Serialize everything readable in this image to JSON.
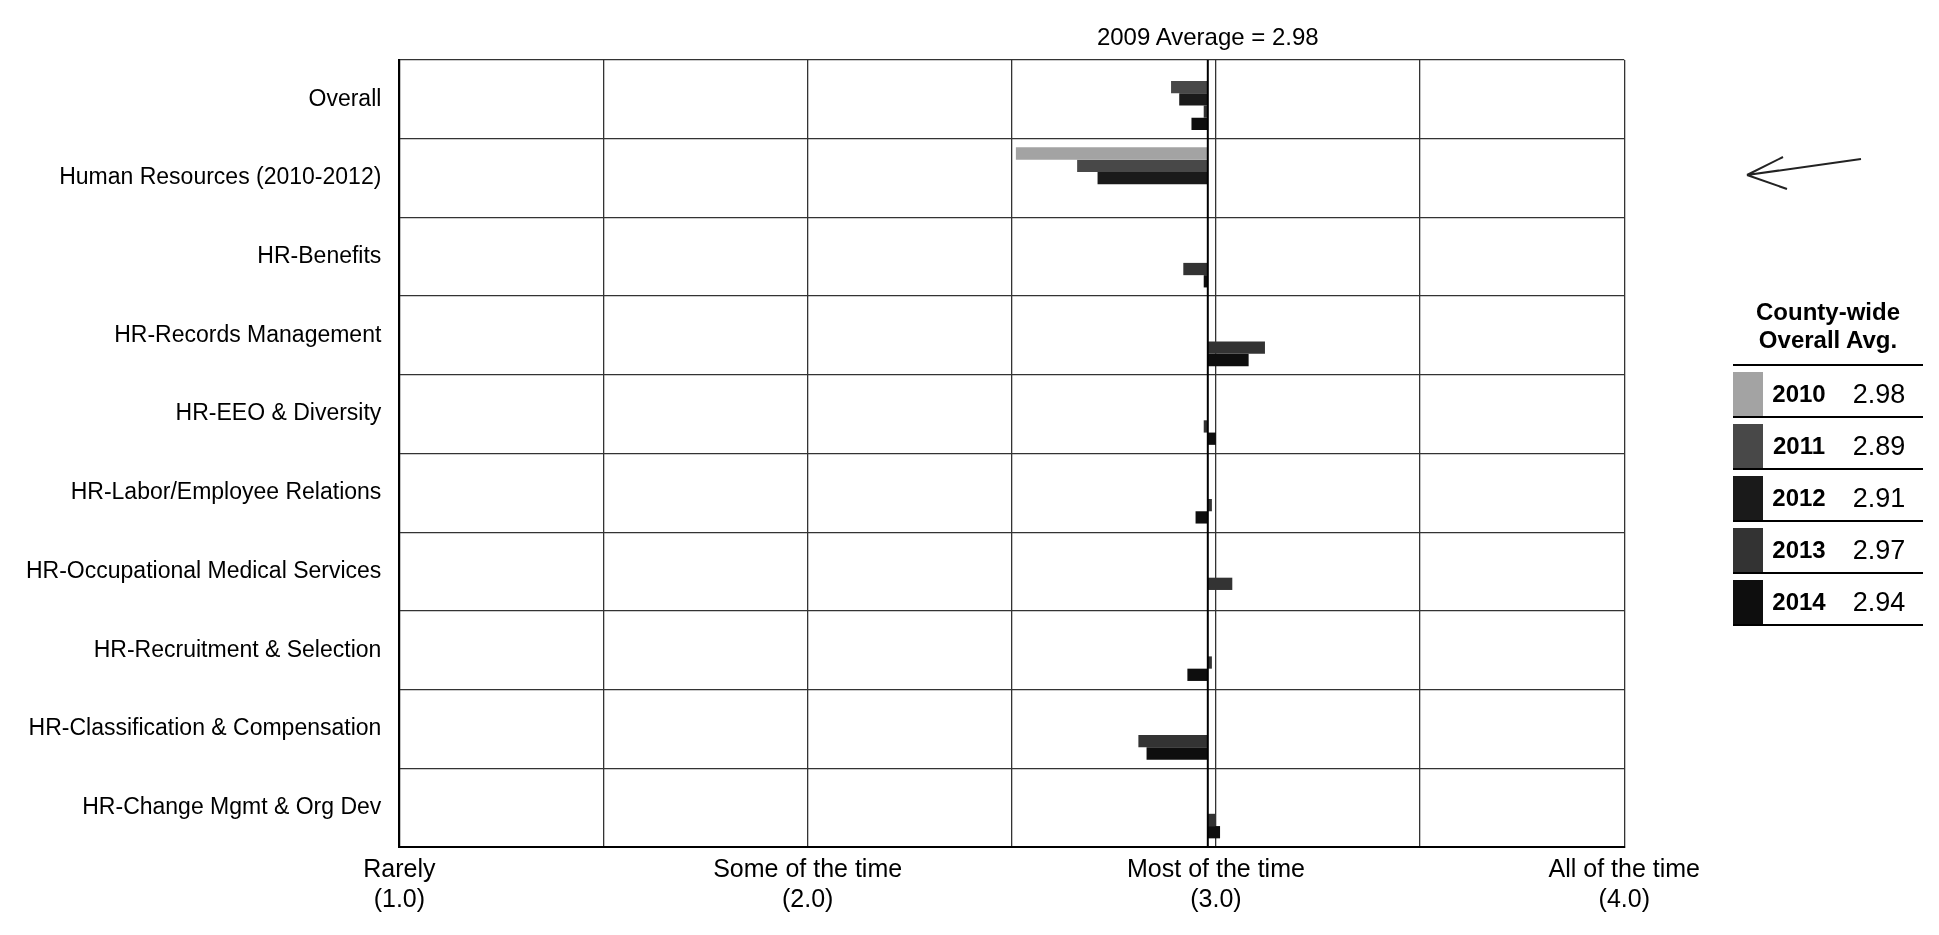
{
  "chart_data": {
    "type": "bar",
    "orientation": "horizontal",
    "categories": [
      "Overall",
      "Human Resources (2010-2012)",
      "HR-Benefits",
      "HR-Records Management",
      "HR-EEO & Diversity",
      "HR-Labor/Employee Relations",
      "HR-Occupational Medical Services",
      "HR-Recruitment & Selection",
      "HR-Classification & Compensation",
      "HR-Change Mgmt & Org Dev"
    ],
    "series": [
      {
        "name": "2010",
        "color": "#a3a3a3",
        "base": [
          null,
          2.98,
          null,
          null,
          null,
          null,
          null,
          null,
          null,
          null
        ],
        "values": [
          null,
          -0.47,
          null,
          null,
          null,
          null,
          null,
          null,
          null,
          null
        ]
      },
      {
        "name": "2011",
        "color": "#484848",
        "base": [
          2.98,
          2.98,
          null,
          null,
          null,
          null,
          null,
          null,
          null,
          null
        ],
        "values": [
          -0.09,
          -0.32,
          null,
          null,
          null,
          null,
          null,
          null,
          null,
          null
        ]
      },
      {
        "name": "2012",
        "color": "#1a1a1a",
        "base": [
          2.98,
          2.98,
          null,
          null,
          null,
          null,
          null,
          null,
          null,
          null
        ],
        "values": [
          -0.07,
          -0.27,
          null,
          null,
          null,
          null,
          null,
          null,
          null,
          null
        ]
      },
      {
        "name": "2013",
        "color": "#333333",
        "base": [
          2.98,
          null,
          2.98,
          2.98,
          2.98,
          2.98,
          2.98,
          2.98,
          2.98,
          2.98
        ],
        "values": [
          -0.01,
          null,
          -0.06,
          0.14,
          -0.01,
          0.01,
          0.06,
          0.01,
          -0.17,
          0.02
        ]
      },
      {
        "name": "2014",
        "color": "#0e0e0e",
        "base": [
          2.98,
          null,
          2.98,
          2.98,
          2.98,
          2.98,
          null,
          2.98,
          2.98,
          2.98
        ],
        "values": [
          -0.04,
          null,
          -0.01,
          0.1,
          0.02,
          -0.03,
          null,
          -0.05,
          -0.15,
          0.03
        ]
      }
    ],
    "xlim": [
      1,
      4
    ],
    "xticks": [
      {
        "value": 1,
        "label": "Rarely\n(1.0)"
      },
      {
        "value": 1.5,
        "label": null
      },
      {
        "value": 2,
        "label": "Some of the time\n(2.0)"
      },
      {
        "value": 2.5,
        "label": null
      },
      {
        "value": 3,
        "label": "Most of the time\n(3.0)"
      },
      {
        "value": 3.5,
        "label": null
      },
      {
        "value": 4,
        "label": "All of the time\n(4.0)"
      }
    ],
    "grid": true,
    "ref_lines": [
      {
        "axis": "x",
        "value": 2.98,
        "label": "2009 Average = 2.98",
        "color": "#000000",
        "line_style": "solid"
      }
    ],
    "legend": "right",
    "legend_title": "County-wide Overall Avg.",
    "annotations": [
      "2.98",
      "2.89",
      "2.91",
      "2.97",
      "2.94"
    ]
  }
}
